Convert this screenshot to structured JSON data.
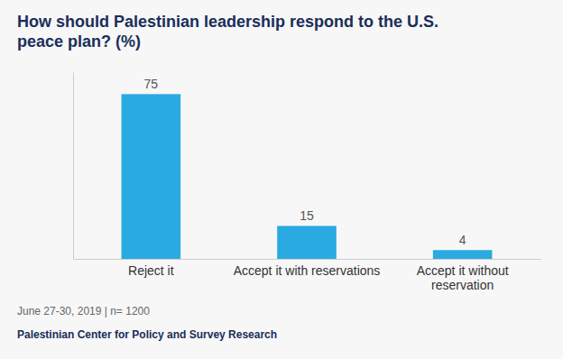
{
  "chart_data": {
    "type": "bar",
    "title": "How should Palestinian leadership respond to the U.S.\npeace plan? (%)",
    "categories": [
      "Reject it",
      "Accept it with reservations",
      "Accept it without\nreservation"
    ],
    "values": [
      75,
      15,
      4
    ],
    "color": "#29ABE2",
    "ylim": [
      0,
      85
    ],
    "data_labels": true,
    "tick_labels": "x",
    "grid": false,
    "annotations": [
      "June 27-30, 2019 | n= 1200",
      "Palestinian Center for Policy and Survey Research"
    ]
  }
}
